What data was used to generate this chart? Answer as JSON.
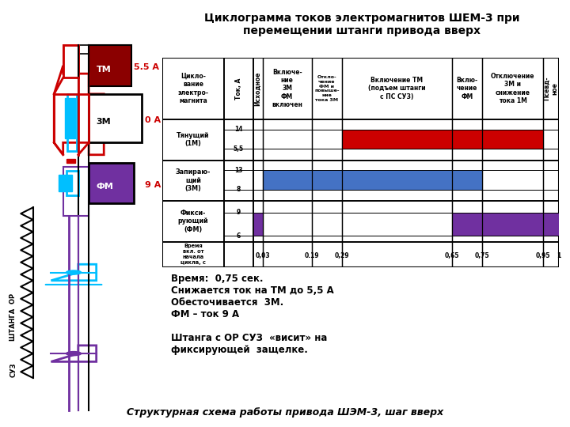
{
  "title": "Циклограмма токов электромагнитов ШЕМ-3 при\nперемещении штанги привода вверх",
  "bottom_title": "Структурная схема работы привода ШЭМ-3, шаг вверх",
  "annotation_lines": [
    "Время:  0,75 сек.",
    "Снижается ток на ТМ до 5,5 А",
    "Обесточивается  3М.",
    "ФМ – ток 9 А",
    "",
    "Штанга с ОР СУЗ  «висит» на",
    "фиксирующей  защелке."
  ],
  "red_color": "#cc0000",
  "blue_color": "#4472c4",
  "purple_color": "#7030a0",
  "dark_red": "#8b0000",
  "cyan_color": "#00bfff",
  "label_55": "5.5 А",
  "label_0a": "0 А",
  "label_9a": "9 А"
}
